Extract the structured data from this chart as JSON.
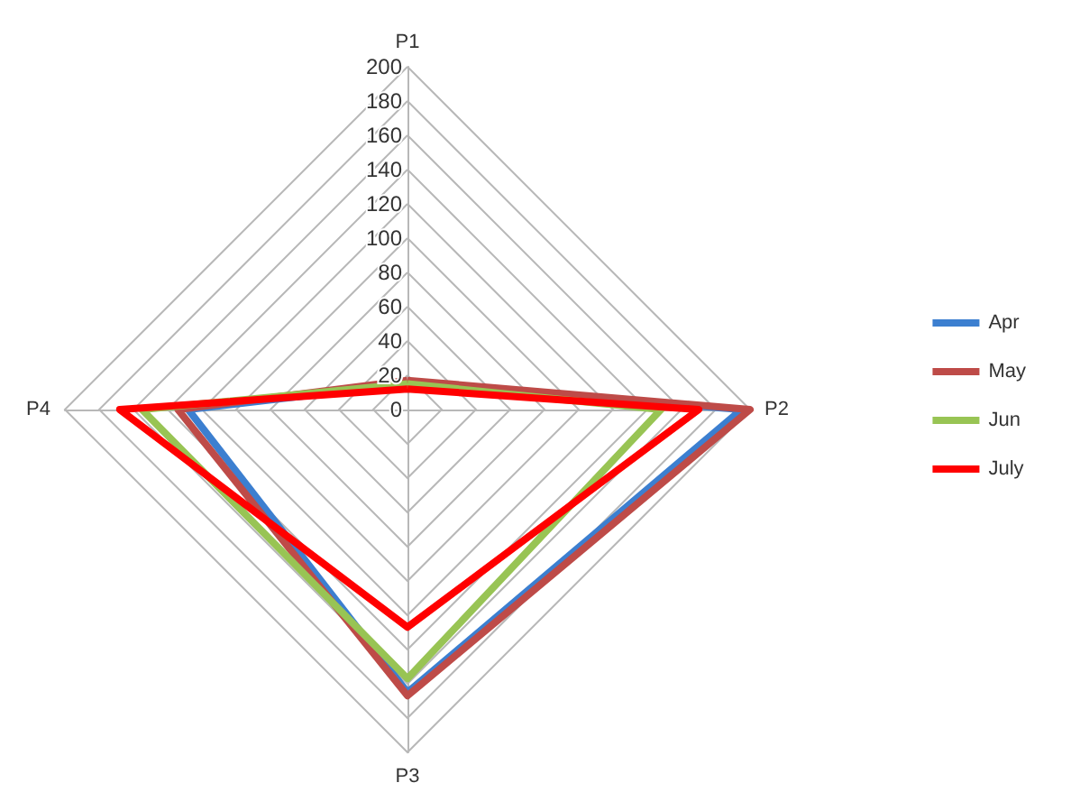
{
  "chart_data": {
    "type": "radar",
    "categories": [
      "P1",
      "P2",
      "P3",
      "P4"
    ],
    "ylim": [
      0,
      200
    ],
    "yticks": [
      0,
      20,
      40,
      60,
      80,
      100,
      120,
      140,
      160,
      180,
      200
    ],
    "grid": true,
    "legend": "right",
    "marker": "none",
    "series": [
      {
        "name": "Apr",
        "color": "#3c7fd0",
        "values": [
          15,
          195,
          165,
          128
        ]
      },
      {
        "name": "May",
        "color": "#be4b48",
        "values": [
          17,
          200,
          167,
          134
        ]
      },
      {
        "name": "Jun",
        "color": "#98c454",
        "values": [
          15,
          148,
          157,
          155
        ]
      },
      {
        "name": "July",
        "color": "#ff0000",
        "values": [
          12,
          170,
          127,
          168
        ]
      }
    ]
  }
}
